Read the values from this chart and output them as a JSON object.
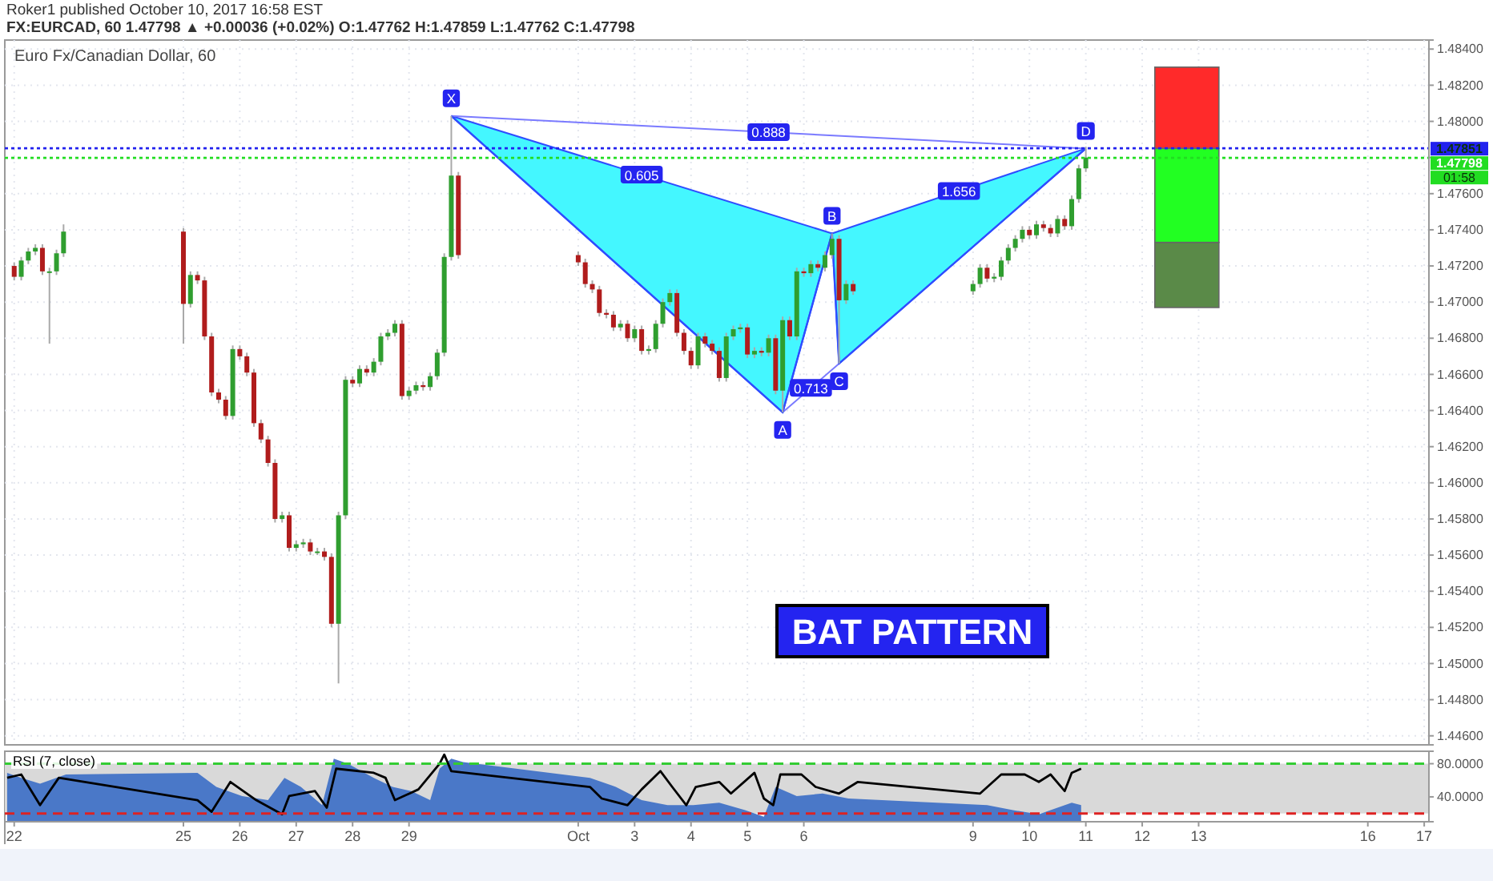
{
  "chart_data": [
    {
      "type": "candlestick",
      "title": "Euro Fx/Canadian Dollar, 60",
      "subtitle": "FX:EURCAD, 60 1.47798 ▲ +0.00036 (+0.02%) O:1.47762 H:1.47859 L:1.47762 C:1.47798",
      "annotations": [
        "Roker1 published October 10, 2017 16:58 EST",
        "01:58",
        "BAT PATTERN",
        "0.888",
        "0.605",
        "1.656",
        "0.713",
        {
          "text": "X",
          "x": "2017-09-29T18:00",
          "y": 1.4803
        },
        {
          "text": "A",
          "x": "2017-10-05T15:00",
          "y": 1.4639
        },
        {
          "text": "B",
          "x": "2017-10-06T12:00",
          "y": 1.4738
        },
        {
          "text": "C",
          "x": "2017-10-06T15:00",
          "y": 1.4666
        },
        {
          "text": "D",
          "x": "2017-10-11T00:00",
          "y": 1.4785
        }
      ],
      "x": [
        "2017-09-22T00:00",
        "2017-09-22T03:00",
        "2017-09-22T06:00",
        "2017-09-22T09:00",
        "2017-09-22T12:00",
        "2017-09-22T15:00",
        "2017-09-22T18:00",
        "2017-09-22T21:00",
        "2017-09-25T00:00",
        "2017-09-25T03:00",
        "2017-09-25T06:00",
        "2017-09-25T09:00",
        "2017-09-25T12:00",
        "2017-09-25T15:00",
        "2017-09-25T18:00",
        "2017-09-25T21:00",
        "2017-09-26T00:00",
        "2017-09-26T03:00",
        "2017-09-26T06:00",
        "2017-09-26T09:00",
        "2017-09-26T12:00",
        "2017-09-26T15:00",
        "2017-09-26T18:00",
        "2017-09-26T21:00",
        "2017-09-27T00:00",
        "2017-09-27T03:00",
        "2017-09-27T06:00",
        "2017-09-27T09:00",
        "2017-09-27T12:00",
        "2017-09-27T15:00",
        "2017-09-27T18:00",
        "2017-09-27T21:00",
        "2017-09-28T00:00",
        "2017-09-28T03:00",
        "2017-09-28T06:00",
        "2017-09-28T09:00",
        "2017-09-28T12:00",
        "2017-09-28T15:00",
        "2017-09-28T18:00",
        "2017-09-28T21:00",
        "2017-09-29T00:00",
        "2017-09-29T03:00",
        "2017-09-29T06:00",
        "2017-09-29T09:00",
        "2017-09-29T12:00",
        "2017-09-29T15:00",
        "2017-09-29T18:00",
        "2017-09-29T21:00",
        "2017-10-02T00:00",
        "2017-10-02T03:00",
        "2017-10-02T06:00",
        "2017-10-02T09:00",
        "2017-10-02T12:00",
        "2017-10-02T15:00",
        "2017-10-02T18:00",
        "2017-10-02T21:00",
        "2017-10-03T00:00",
        "2017-10-03T03:00",
        "2017-10-03T06:00",
        "2017-10-03T09:00",
        "2017-10-03T12:00",
        "2017-10-03T15:00",
        "2017-10-03T18:00",
        "2017-10-03T21:00",
        "2017-10-04T00:00",
        "2017-10-04T03:00",
        "2017-10-04T06:00",
        "2017-10-04T09:00",
        "2017-10-04T12:00",
        "2017-10-04T15:00",
        "2017-10-04T18:00",
        "2017-10-04T21:00",
        "2017-10-05T00:00",
        "2017-10-05T03:00",
        "2017-10-05T06:00",
        "2017-10-05T09:00",
        "2017-10-05T12:00",
        "2017-10-05T15:00",
        "2017-10-05T18:00",
        "2017-10-05T21:00",
        "2017-10-06T00:00",
        "2017-10-06T03:00",
        "2017-10-06T06:00",
        "2017-10-06T09:00",
        "2017-10-06T12:00",
        "2017-10-06T15:00",
        "2017-10-06T18:00",
        "2017-10-06T21:00",
        "2017-10-09T00:00",
        "2017-10-09T03:00",
        "2017-10-09T06:00",
        "2017-10-09T09:00",
        "2017-10-09T12:00",
        "2017-10-09T15:00",
        "2017-10-09T18:00",
        "2017-10-09T21:00",
        "2017-10-10T00:00",
        "2017-10-10T03:00",
        "2017-10-10T06:00",
        "2017-10-10T09:00",
        "2017-10-10T12:00",
        "2017-10-10T15:00",
        "2017-10-10T18:00",
        "2017-10-10T21:00",
        "2017-10-11T00:00"
      ],
      "ohlc": [
        [
          1.472,
          1.4722,
          1.4712,
          1.4714
        ],
        [
          1.4714,
          1.4725,
          1.4712,
          1.4723
        ],
        [
          1.4723,
          1.473,
          1.4721,
          1.4728
        ],
        [
          1.4728,
          1.4732,
          1.4726,
          1.473
        ],
        [
          1.473,
          1.4732,
          1.4715,
          1.4717
        ],
        [
          1.4717,
          1.4719,
          1.4677,
          1.4717
        ],
        [
          1.4717,
          1.4729,
          1.4715,
          1.4727
        ],
        [
          1.4727,
          1.4743,
          1.4725,
          1.4739
        ],
        [
          1.4739,
          1.4741,
          1.4677,
          1.4699
        ],
        [
          1.4699,
          1.4717,
          1.4697,
          1.4715
        ],
        [
          1.4715,
          1.4717,
          1.471,
          1.4712
        ],
        [
          1.4712,
          1.4714,
          1.4679,
          1.4681
        ],
        [
          1.4681,
          1.4683,
          1.4648,
          1.465
        ],
        [
          1.465,
          1.4652,
          1.4644,
          1.4646
        ],
        [
          1.4646,
          1.4648,
          1.4635,
          1.4637
        ],
        [
          1.4637,
          1.4676,
          1.4635,
          1.4674
        ],
        [
          1.4674,
          1.4676,
          1.4668,
          1.467
        ],
        [
          1.467,
          1.4672,
          1.4659,
          1.4661
        ],
        [
          1.4661,
          1.4663,
          1.4631,
          1.4633
        ],
        [
          1.4633,
          1.4635,
          1.4622,
          1.4624
        ],
        [
          1.4624,
          1.4626,
          1.4609,
          1.4611
        ],
        [
          1.4611,
          1.4613,
          1.4578,
          1.458
        ],
        [
          1.458,
          1.4584,
          1.4578,
          1.4582
        ],
        [
          1.4582,
          1.4584,
          1.4562,
          1.4564
        ],
        [
          1.4564,
          1.4568,
          1.4562,
          1.4566
        ],
        [
          1.4566,
          1.4569,
          1.4564,
          1.4567
        ],
        [
          1.4567,
          1.4569,
          1.456,
          1.4562
        ],
        [
          1.4562,
          1.4564,
          1.456,
          1.4562
        ],
        [
          1.4562,
          1.4564,
          1.4557,
          1.4559
        ],
        [
          1.4559,
          1.4561,
          1.452,
          1.4522
        ],
        [
          1.4522,
          1.4584,
          1.4489,
          1.4582
        ],
        [
          1.4582,
          1.4659,
          1.458,
          1.4657
        ],
        [
          1.4657,
          1.4659,
          1.4653,
          1.4655
        ],
        [
          1.4655,
          1.4665,
          1.4653,
          1.4663
        ],
        [
          1.4663,
          1.4665,
          1.4659,
          1.4661
        ],
        [
          1.4661,
          1.4669,
          1.4659,
          1.4667
        ],
        [
          1.4667,
          1.4683,
          1.4665,
          1.4681
        ],
        [
          1.4681,
          1.4685,
          1.4679,
          1.4683
        ],
        [
          1.4683,
          1.469,
          1.4681,
          1.4688
        ],
        [
          1.4688,
          1.469,
          1.4646,
          1.4648
        ],
        [
          1.4648,
          1.4653,
          1.4646,
          1.4651
        ],
        [
          1.4651,
          1.4656,
          1.4649,
          1.4654
        ],
        [
          1.4654,
          1.4656,
          1.4651,
          1.4653
        ],
        [
          1.4653,
          1.4661,
          1.4651,
          1.4659
        ],
        [
          1.4659,
          1.4674,
          1.4657,
          1.4672
        ],
        [
          1.4672,
          1.4727,
          1.467,
          1.4725
        ],
        [
          1.4725,
          1.4803,
          1.4723,
          1.477
        ],
        [
          1.477,
          1.4772,
          1.4724,
          1.4726
        ],
        [
          1.4726,
          1.4728,
          1.472,
          1.4722
        ],
        [
          1.4722,
          1.4724,
          1.4708,
          1.471
        ],
        [
          1.471,
          1.4712,
          1.4705,
          1.4707
        ],
        [
          1.4707,
          1.4709,
          1.4692,
          1.4694
        ],
        [
          1.4694,
          1.4696,
          1.4691,
          1.4693
        ],
        [
          1.4693,
          1.4695,
          1.4684,
          1.4686
        ],
        [
          1.4686,
          1.469,
          1.4684,
          1.4688
        ],
        [
          1.4688,
          1.469,
          1.4678,
          1.468
        ],
        [
          1.468,
          1.4687,
          1.4678,
          1.4685
        ],
        [
          1.4685,
          1.4687,
          1.4671,
          1.4673
        ],
        [
          1.4673,
          1.4676,
          1.4671,
          1.4674
        ],
        [
          1.4674,
          1.469,
          1.4672,
          1.4688
        ],
        [
          1.4688,
          1.4702,
          1.4686,
          1.47
        ],
        [
          1.47,
          1.4707,
          1.4698,
          1.4705
        ],
        [
          1.4705,
          1.4707,
          1.4681,
          1.4683
        ],
        [
          1.4683,
          1.4685,
          1.4671,
          1.4673
        ],
        [
          1.4673,
          1.4675,
          1.4663,
          1.4665
        ],
        [
          1.4665,
          1.4683,
          1.4663,
          1.4681
        ],
        [
          1.4681,
          1.4683,
          1.4675,
          1.4677
        ],
        [
          1.4677,
          1.4679,
          1.4671,
          1.4673
        ],
        [
          1.4673,
          1.4675,
          1.4656,
          1.4658
        ],
        [
          1.4658,
          1.4683,
          1.4656,
          1.4681
        ],
        [
          1.4681,
          1.4687,
          1.4679,
          1.4685
        ],
        [
          1.4685,
          1.4688,
          1.4683,
          1.4686
        ],
        [
          1.4686,
          1.4688,
          1.4669,
          1.4671
        ],
        [
          1.4671,
          1.4675,
          1.4669,
          1.4673
        ],
        [
          1.4673,
          1.4675,
          1.467,
          1.4672
        ],
        [
          1.4672,
          1.4682,
          1.467,
          1.468
        ],
        [
          1.468,
          1.4682,
          1.4649,
          1.4651
        ],
        [
          1.4651,
          1.4692,
          1.4639,
          1.469
        ],
        [
          1.469,
          1.4692,
          1.4679,
          1.4681
        ],
        [
          1.4681,
          1.4719,
          1.4679,
          1.4717
        ],
        [
          1.4717,
          1.4719,
          1.4714,
          1.4716
        ],
        [
          1.4716,
          1.4723,
          1.4714,
          1.4721
        ],
        [
          1.4721,
          1.4723,
          1.4717,
          1.4719
        ],
        [
          1.4719,
          1.4728,
          1.4717,
          1.4726
        ],
        [
          1.4726,
          1.4738,
          1.4724,
          1.4735
        ],
        [
          1.4735,
          1.4737,
          1.4666,
          1.4701
        ],
        [
          1.4701,
          1.4712,
          1.4699,
          1.471
        ],
        [
          1.471,
          1.4712,
          1.4704,
          1.4706
        ],
        [
          1.4706,
          1.4712,
          1.4704,
          1.471
        ],
        [
          1.471,
          1.4721,
          1.4708,
          1.4719
        ],
        [
          1.4719,
          1.4721,
          1.4711,
          1.4713
        ],
        [
          1.4713,
          1.4716,
          1.4711,
          1.4714
        ],
        [
          1.4714,
          1.4725,
          1.4712,
          1.4723
        ],
        [
          1.4723,
          1.4732,
          1.4721,
          1.473
        ],
        [
          1.473,
          1.4737,
          1.4728,
          1.4735
        ],
        [
          1.4735,
          1.4742,
          1.4733,
          1.474
        ],
        [
          1.474,
          1.4742,
          1.4735,
          1.4737
        ],
        [
          1.4737,
          1.4745,
          1.4735,
          1.4743
        ],
        [
          1.4743,
          1.4745,
          1.4739,
          1.4741
        ],
        [
          1.4741,
          1.4743,
          1.4736,
          1.4738
        ],
        [
          1.4738,
          1.4748,
          1.4736,
          1.4746
        ],
        [
          1.4746,
          1.4748,
          1.474,
          1.4742
        ],
        [
          1.4742,
          1.4759,
          1.474,
          1.4757
        ],
        [
          1.4757,
          1.4776,
          1.4755,
          1.4774
        ],
        [
          1.4774,
          1.4786,
          1.4772,
          1.478
        ]
      ],
      "series": [
        {
          "type": "line",
          "color": "#2f4dff",
          "x": [
            "2017-09-29T18:00",
            "2017-10-05T15:00",
            "2017-10-06T12:00",
            "2017-10-06T15:00",
            "2017-10-11T00:00"
          ],
          "values": [
            1.4803,
            1.4639,
            1.4738,
            1.4666,
            1.4785
          ]
        },
        {
          "type": "bar",
          "color": "#ff2a2a",
          "x": [
            "2017-10-12T19:00"
          ],
          "base": [
            1.4785
          ],
          "values": [
            0.0045
          ]
        },
        {
          "type": "bar",
          "color": "#22ff22",
          "x": [
            "2017-10-12T19:00"
          ],
          "base": [
            1.4733
          ],
          "values": [
            0.0052
          ]
        },
        {
          "type": "bar",
          "color": "#5a8a48",
          "x": [
            "2017-10-12T19:00"
          ],
          "base": [
            1.4697
          ],
          "values": [
            0.0036
          ]
        }
      ],
      "ref_lines": [
        {
          "axis": "y",
          "value": 1.47851,
          "label": "1.47851",
          "color": "#2222ee",
          "line_style": "dotted"
        },
        {
          "axis": "y",
          "value": 1.47798,
          "label": "1.47798",
          "color": "#22dd22",
          "line_style": "dotted"
        }
      ],
      "xlim": [
        "2017-09-21T20:00",
        "2017-10-17T02:00"
      ],
      "ylim": [
        1.4455,
        1.4845
      ],
      "yticks": [
        {
          "value": 1.446,
          "label": "1.44600"
        },
        {
          "value": 1.448,
          "label": "1.44800"
        },
        {
          "value": 1.45,
          "label": "1.45000"
        },
        {
          "value": 1.452,
          "label": "1.45200"
        },
        {
          "value": 1.454,
          "label": "1.45400"
        },
        {
          "value": 1.456,
          "label": "1.45600"
        },
        {
          "value": 1.458,
          "label": "1.45800"
        },
        {
          "value": 1.46,
          "label": "1.46000"
        },
        {
          "value": 1.462,
          "label": "1.46200"
        },
        {
          "value": 1.464,
          "label": "1.46400"
        },
        {
          "value": 1.466,
          "label": "1.46600"
        },
        {
          "value": 1.468,
          "label": "1.46800"
        },
        {
          "value": 1.47,
          "label": "1.47000"
        },
        {
          "value": 1.472,
          "label": "1.47200"
        },
        {
          "value": 1.474,
          "label": "1.47400"
        },
        {
          "value": 1.476,
          "label": "1.47600"
        },
        {
          "value": 1.478,
          "label": null
        },
        {
          "value": 1.48,
          "label": "1.48000"
        },
        {
          "value": 1.482,
          "label": "1.48200"
        },
        {
          "value": 1.484,
          "label": "1.48400"
        }
      ],
      "grid": true,
      "tick_labels": "y"
    },
    {
      "type": "line",
      "legend": "top left",
      "series": [
        {
          "type": "area",
          "color": "#4a78c8",
          "x": [
            "2017-09-21T21:00",
            "2017-09-22T03:00",
            "2017-09-22T11:00",
            "2017-09-22T22:00",
            "2017-09-25T06:00",
            "2017-09-25T14:00",
            "2017-09-26T01:00",
            "2017-09-26T12:00",
            "2017-09-26T19:00",
            "2017-09-27T02:00",
            "2017-09-27T11:00",
            "2017-09-27T16:00",
            "2017-09-27T22:00",
            "2017-09-28T09:00",
            "2017-09-28T17:00",
            "2017-09-29T01:00",
            "2017-09-29T09:00",
            "2017-09-29T13:00",
            "2017-09-29T18:00",
            "2017-09-29T23:00",
            "2017-10-02T05:00",
            "2017-10-02T16:00",
            "2017-10-03T03:00",
            "2017-10-03T14:00",
            "2017-10-04T01:00",
            "2017-10-04T12:00",
            "2017-10-04T23:00",
            "2017-10-05T07:00",
            "2017-10-05T12:00",
            "2017-10-05T21:00",
            "2017-10-06T08:00",
            "2017-10-06T19:00",
            "2017-10-09T06:00",
            "2017-10-09T17:00",
            "2017-10-10T04:00",
            "2017-10-10T09:00",
            "2017-10-10T18:00",
            "2017-10-10T22:00"
          ],
          "values": [
            69,
            63,
            56,
            67,
            69,
            52,
            41,
            36,
            63,
            52,
            30,
            86,
            80,
            63,
            52,
            47,
            36,
            74,
            86,
            82,
            63,
            52,
            36,
            30,
            30,
            33,
            24,
            16,
            52,
            41,
            44,
            38,
            30,
            24,
            19,
            24,
            33,
            30
          ]
        },
        {
          "name": "RSI (7, close)",
          "color": "#000000",
          "x": [
            "2017-09-21T21:00",
            "2017-09-22T03:00",
            "2017-09-22T11:00",
            "2017-09-22T19:00",
            "2017-09-25T06:00",
            "2017-09-25T12:00",
            "2017-09-25T20:00",
            "2017-09-26T07:00",
            "2017-09-26T18:00",
            "2017-09-26T21:00",
            "2017-09-27T08:00",
            "2017-09-27T13:00",
            "2017-09-27T17:00",
            "2017-09-28T09:00",
            "2017-09-28T14:00",
            "2017-09-28T18:00",
            "2017-09-29T04:00",
            "2017-09-29T13:00",
            "2017-09-29T15:00",
            "2017-09-29T18:00",
            "2017-10-02T05:00",
            "2017-10-02T10:00",
            "2017-10-02T21:00",
            "2017-10-03T03:00",
            "2017-10-03T11:00",
            "2017-10-03T16:00",
            "2017-10-03T22:00",
            "2017-10-04T02:00",
            "2017-10-04T12:00",
            "2017-10-04T17:00",
            "2017-10-05T03:00",
            "2017-10-05T07:00",
            "2017-10-05T11:00",
            "2017-10-05T14:00",
            "2017-10-05T23:00",
            "2017-10-06T05:00",
            "2017-10-06T15:00",
            "2017-10-06T23:00",
            "2017-10-09T03:00",
            "2017-10-09T12:00",
            "2017-10-09T22:00",
            "2017-10-10T04:00",
            "2017-10-10T09:00",
            "2017-10-10T15:00",
            "2017-10-10T18:00",
            "2017-10-10T22:00"
          ],
          "values": [
            63,
            67,
            30,
            63,
            36,
            22,
            58,
            36,
            19,
            41,
            47,
            27,
            74,
            69,
            63,
            36,
            49,
            80,
            91,
            71,
            52,
            38,
            30,
            49,
            71,
            52,
            30,
            52,
            58,
            44,
            69,
            38,
            30,
            67,
            67,
            52,
            44,
            58,
            44,
            67,
            67,
            58,
            67,
            47,
            69,
            74
          ]
        }
      ],
      "bands": [
        {
          "axis": "y",
          "from": 20,
          "to": 80,
          "color": "#d9d9d9"
        }
      ],
      "ref_lines": [
        {
          "axis": "y",
          "value": 80,
          "color": "#33cc33",
          "line_style": "dashed"
        },
        {
          "axis": "y",
          "value": 20,
          "color": "#dd2222",
          "line_style": "dashed"
        }
      ],
      "xlim": [
        "2017-09-21T20:00",
        "2017-10-17T02:00"
      ],
      "xticks": [
        {
          "value": "2017-09-22",
          "label": "22"
        },
        {
          "value": "2017-09-25",
          "label": "25"
        },
        {
          "value": "2017-09-26",
          "label": "26"
        },
        {
          "value": "2017-09-27",
          "label": "27"
        },
        {
          "value": "2017-09-28",
          "label": "28"
        },
        {
          "value": "2017-09-29",
          "label": "29"
        },
        {
          "value": "2017-10-02",
          "label": "Oct"
        },
        {
          "value": "2017-10-03",
          "label": "3"
        },
        {
          "value": "2017-10-04",
          "label": "4"
        },
        {
          "value": "2017-10-05",
          "label": "5"
        },
        {
          "value": "2017-10-06",
          "label": "6"
        },
        {
          "value": "2017-10-09",
          "label": "9"
        },
        {
          "value": "2017-10-10",
          "label": "10"
        },
        {
          "value": "2017-10-11",
          "label": "11"
        },
        {
          "value": "2017-10-12",
          "label": "12"
        },
        {
          "value": "2017-10-13",
          "label": "13"
        },
        {
          "value": "2017-10-16",
          "label": "16"
        },
        {
          "value": "2017-10-17",
          "label": "17"
        }
      ],
      "ylim": [
        10,
        95
      ],
      "yticks": [
        {
          "value": 40,
          "label": "40.0000"
        },
        {
          "value": 80,
          "label": "80.0000"
        }
      ]
    }
  ]
}
